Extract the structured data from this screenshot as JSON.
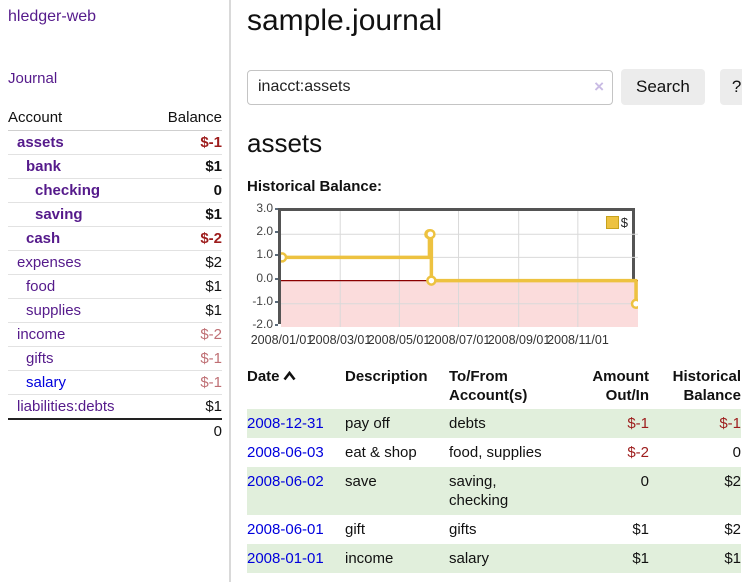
{
  "colors": {
    "link_purple": "#551a8b",
    "link_blue": "#0000dd",
    "text_default": "#111111",
    "negative_strong": "#9d1c1c",
    "negative_soft": "#bf6f74",
    "row_green": "#e1efdc",
    "chart_line": "#edc240",
    "chart_marker_fill": "#ffffff",
    "chart_negative_fill": "#fbdcdc",
    "chart_zero_line": "#8b0000",
    "chart_grid": "#d9d9d9",
    "chart_border": "#545454"
  },
  "sidebar": {
    "brand": "hledger-web",
    "nav_journal": "Journal",
    "table": {
      "headers": {
        "account": "Account",
        "balance": "Balance"
      },
      "rows": [
        {
          "account": "assets",
          "balance": "$-1",
          "indent": 1,
          "bold": true,
          "account_color": "purple",
          "balance_color": "negative_strong"
        },
        {
          "account": "bank",
          "balance": "$1",
          "indent": 2,
          "bold": true,
          "account_color": "purple",
          "balance_color": "default"
        },
        {
          "account": "checking",
          "balance": "0",
          "indent": 3,
          "bold": true,
          "account_color": "purple",
          "balance_color": "default"
        },
        {
          "account": "saving",
          "balance": "$1",
          "indent": 3,
          "bold": true,
          "account_color": "purple",
          "balance_color": "default"
        },
        {
          "account": "cash",
          "balance": "$-2",
          "indent": 2,
          "bold": true,
          "account_color": "purple",
          "balance_color": "negative_strong"
        },
        {
          "account": "expenses",
          "balance": "$2",
          "indent": 1,
          "bold": false,
          "account_color": "purple",
          "balance_color": "default"
        },
        {
          "account": "food",
          "balance": "$1",
          "indent": 2,
          "bold": false,
          "account_color": "purple",
          "balance_color": "default"
        },
        {
          "account": "supplies",
          "balance": "$1",
          "indent": 2,
          "bold": false,
          "account_color": "purple",
          "balance_color": "default"
        },
        {
          "account": "income",
          "balance": "$-2",
          "indent": 1,
          "bold": false,
          "account_color": "purple",
          "balance_color": "negative_soft"
        },
        {
          "account": "gifts",
          "balance": "$-1",
          "indent": 2,
          "bold": false,
          "account_color": "purple",
          "balance_color": "negative_soft"
        },
        {
          "account": "salary",
          "balance": "$-1",
          "indent": 2,
          "bold": false,
          "account_color": "blue",
          "balance_color": "negative_soft"
        },
        {
          "account": "liabilities:debts",
          "balance": "$1",
          "indent": 1,
          "bold": false,
          "account_color": "purple",
          "balance_color": "default"
        }
      ],
      "total": "0"
    }
  },
  "main": {
    "title": "sample.journal",
    "search": {
      "value": "inacct:assets",
      "clear_icon": "×",
      "button": "Search",
      "help": "?"
    },
    "account_heading": "assets",
    "chart_title": "Historical Balance:"
  },
  "chart_data": {
    "type": "line",
    "step": true,
    "title": "Historical Balance:",
    "legend": [
      {
        "label": "$",
        "color": "#edc240"
      }
    ],
    "points": [
      {
        "date": "2008-01-01",
        "balance": 1
      },
      {
        "date": "2008-06-01",
        "balance": 2
      },
      {
        "date": "2008-06-02",
        "balance": 2
      },
      {
        "date": "2008-06-03",
        "balance": 0
      },
      {
        "date": "2008-12-31",
        "balance": -1
      }
    ],
    "y_ticks": [
      "3.0",
      "2.0",
      "1.0",
      "0.0",
      "-1.0",
      "-2.0"
    ],
    "x_ticks": [
      "2008/01/01",
      "2008/03/01",
      "2008/05/01",
      "2008/07/01",
      "2008/09/01",
      "2008/11/01"
    ],
    "ylim": [
      -2,
      3
    ],
    "xlim": [
      "2008-01-01",
      "2009-01-01"
    ],
    "grid": true,
    "negative_region_shaded": true,
    "legend_position": "top-right"
  },
  "register": {
    "headers": {
      "date": "Date",
      "description": "Description",
      "accounts": "To/From Account(s)",
      "amount": "Amount Out/In",
      "balance": "Historical Balance"
    },
    "sort_icon": "chevron-up",
    "rows": [
      {
        "date": "2008-12-31",
        "description": "pay off",
        "accounts": "debts",
        "amount": "$-1",
        "amount_negative": true,
        "balance": "$-1",
        "balance_negative": true
      },
      {
        "date": "2008-06-03",
        "description": "eat & shop",
        "accounts": "food, supplies",
        "amount": "$-2",
        "amount_negative": true,
        "balance": "0",
        "balance_negative": false
      },
      {
        "date": "2008-06-02",
        "description": "save",
        "accounts": "saving, checking",
        "amount": "0",
        "amount_negative": false,
        "balance": "$2",
        "balance_negative": false
      },
      {
        "date": "2008-06-01",
        "description": "gift",
        "accounts": "gifts",
        "amount": "$1",
        "amount_negative": false,
        "balance": "$2",
        "balance_negative": false
      },
      {
        "date": "2008-01-01",
        "description": "income",
        "accounts": "salary",
        "amount": "$1",
        "amount_negative": false,
        "balance": "$1",
        "balance_negative": false
      }
    ]
  }
}
